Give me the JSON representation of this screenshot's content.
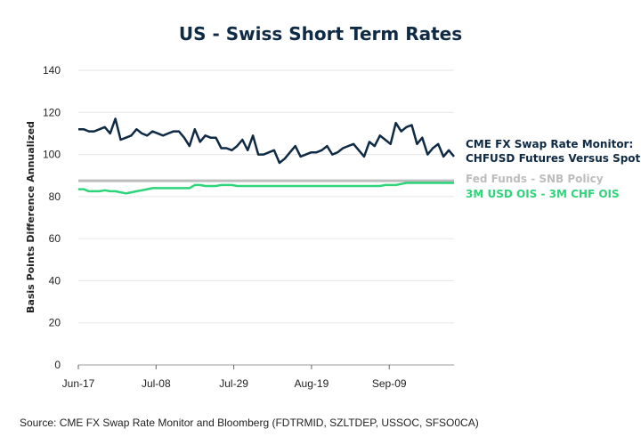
{
  "chart_data": {
    "type": "line",
    "title": "US - Swiss Short Term Rates",
    "ylabel": "Basis Points Difference Annualized",
    "xlabel": "",
    "ylim": [
      0,
      140
    ],
    "yticks": [
      0,
      20,
      40,
      60,
      80,
      100,
      120,
      140
    ],
    "xticks": [
      "Jun-17",
      "Jul-08",
      "Jul-29",
      "Aug-19",
      "Sep-09"
    ],
    "grid": "horizontal",
    "legend_placement": "right",
    "source": "Source: CME FX Swap Rate Monitor and Bloomberg (FDTRMID, SZLTDEP, USSOC, SFSO0CA)",
    "series": [
      {
        "name": "CME FX Swap Rate Monitor: CHFUSD Futures Versus Spot",
        "color": "#0f2a44",
        "values": [
          112,
          112,
          111,
          111,
          112,
          113,
          110,
          117,
          107,
          108,
          109,
          112,
          110,
          109,
          111,
          110,
          109,
          110,
          111,
          111,
          108,
          104,
          112,
          106,
          109,
          108,
          108,
          103,
          103,
          102,
          104,
          107,
          102,
          109,
          100,
          100,
          101,
          102,
          96,
          98,
          101,
          104,
          99,
          100,
          101,
          101,
          102,
          104,
          100,
          101,
          103,
          104,
          105,
          102,
          99,
          106,
          104,
          109,
          107,
          105,
          115,
          111,
          113,
          114,
          105,
          108,
          100,
          103,
          105,
          99,
          102,
          99
        ]
      },
      {
        "name": "Fed Funds - SNB Policy",
        "color": "#bdbdbd",
        "values": [
          87.5,
          87.5
        ]
      },
      {
        "name": "3M USD OIS - 3M CHF OIS",
        "color": "#2ed47a",
        "values": [
          83.5,
          83.5,
          82.5,
          82.5,
          82.5,
          83,
          82.5,
          82.5,
          82,
          81.5,
          82,
          82.5,
          83,
          83.5,
          84,
          84,
          84,
          84,
          84,
          84,
          84,
          84,
          85.5,
          85.5,
          85,
          85,
          85,
          85.5,
          85.5,
          85.5,
          85,
          85,
          85,
          85,
          85,
          85,
          85,
          85,
          85,
          85,
          85,
          85,
          85,
          85,
          85,
          85,
          85,
          85,
          85,
          85,
          85,
          85,
          85,
          85,
          85,
          85,
          85,
          85,
          85.5,
          85.5,
          85.5,
          86,
          86.5,
          86.5,
          86.5,
          86.5,
          86.5,
          86.5,
          86.5,
          86.5,
          86.5,
          86.5
        ]
      }
    ]
  }
}
